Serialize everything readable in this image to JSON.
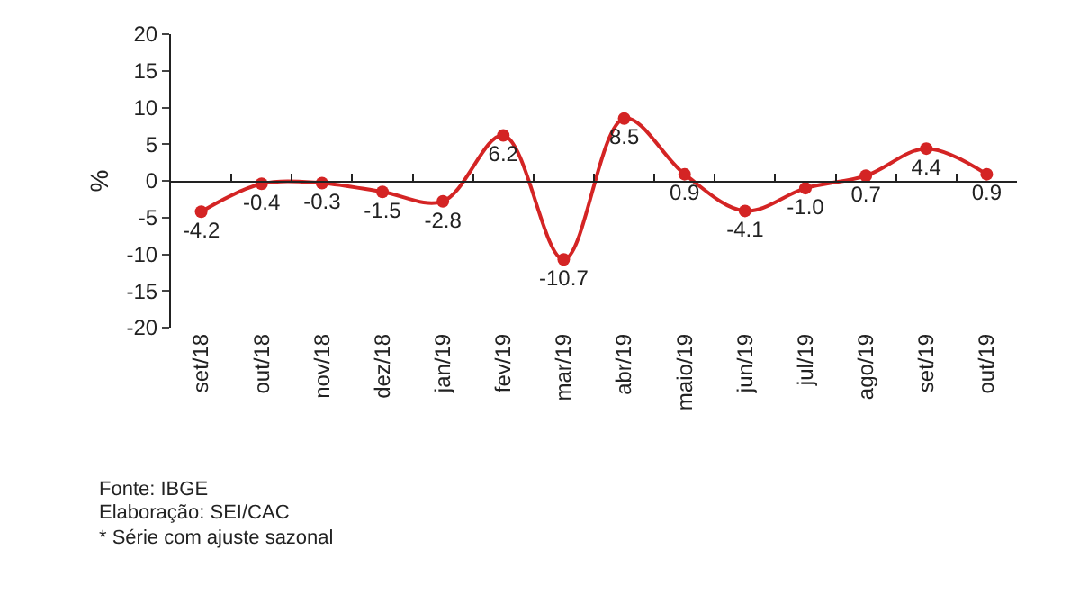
{
  "chart_data": {
    "type": "line",
    "ylabel": "%",
    "categories": [
      "set/18",
      "out/18",
      "nov/18",
      "dez/18",
      "jan/19",
      "fev/19",
      "mar/19",
      "abr/19",
      "maio/19",
      "jun/19",
      "jul/19",
      "ago/19",
      "set/19",
      "out/19"
    ],
    "series": [
      {
        "color": "#d42424",
        "values": [
          -4.2,
          -0.4,
          -0.3,
          -1.5,
          -2.8,
          6.2,
          -10.7,
          8.5,
          0.9,
          -4.1,
          -1.0,
          0.7,
          4.4,
          0.9
        ]
      }
    ],
    "ylim": [
      -20,
      20
    ],
    "yticks": [
      -20,
      -15,
      -10,
      -5,
      0,
      5,
      10,
      15,
      20
    ],
    "value_labels": [
      "-4.2",
      "-0.4",
      "-0.3",
      "-1.5",
      "-2.8",
      "6.2",
      "-10.7",
      "8.5",
      "0.9",
      "-4.1",
      "-1.0",
      "0.7",
      "4.4",
      "0.9"
    ],
    "ref_lines": [
      {
        "axis": "y",
        "value": 0
      }
    ],
    "marker": "circle",
    "legend": false,
    "annotations": [
      "Fonte: IBGE",
      "Elaboração: SEI/CAC",
      "* Série com ajuste sazonal"
    ]
  }
}
